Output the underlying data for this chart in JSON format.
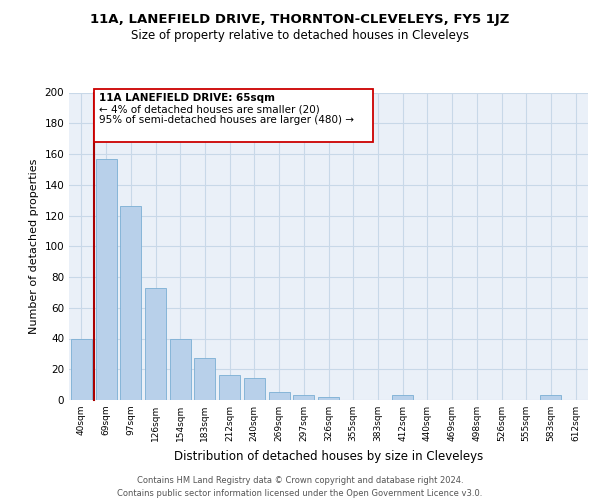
{
  "title": "11A, LANEFIELD DRIVE, THORNTON-CLEVELEYS, FY5 1JZ",
  "subtitle": "Size of property relative to detached houses in Cleveleys",
  "xlabel": "Distribution of detached houses by size in Cleveleys",
  "ylabel": "Number of detached properties",
  "bar_color": "#b8d0ea",
  "bar_edge_color": "#7bafd4",
  "categories": [
    "40sqm",
    "69sqm",
    "97sqm",
    "126sqm",
    "154sqm",
    "183sqm",
    "212sqm",
    "240sqm",
    "269sqm",
    "297sqm",
    "326sqm",
    "355sqm",
    "383sqm",
    "412sqm",
    "440sqm",
    "469sqm",
    "498sqm",
    "526sqm",
    "555sqm",
    "583sqm",
    "612sqm"
  ],
  "values": [
    40,
    157,
    126,
    73,
    40,
    27,
    16,
    14,
    5,
    3,
    2,
    0,
    0,
    3,
    0,
    0,
    0,
    0,
    0,
    3,
    0
  ],
  "ylim": [
    0,
    200
  ],
  "yticks": [
    0,
    20,
    40,
    60,
    80,
    100,
    120,
    140,
    160,
    180,
    200
  ],
  "annotation_text_line1": "11A LANEFIELD DRIVE: 65sqm",
  "annotation_text_line2": "← 4% of detached houses are smaller (20)",
  "annotation_text_line3": "95% of semi-detached houses are larger (480) →",
  "footer_line1": "Contains HM Land Registry data © Crown copyright and database right 2024.",
  "footer_line2": "Contains public sector information licensed under the Open Government Licence v3.0.",
  "background_color": "#ffffff",
  "grid_color": "#c8d8e8",
  "red_line_color": "#aa0000",
  "annotation_box_color": "#cc0000"
}
